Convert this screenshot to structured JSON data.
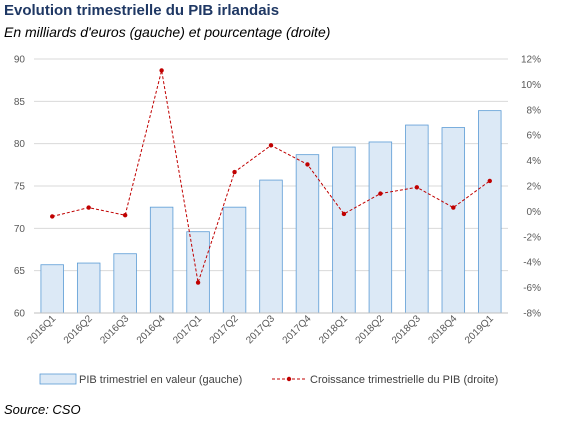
{
  "title": "Evolution trimestrielle du PIB irlandais",
  "subtitle": "En milliards d'euros (gauche) et pourcentage (droite)",
  "source": "Source: CSO",
  "colors": {
    "bar_fill": "#dce9f6",
    "bar_stroke": "#5b9bd5",
    "line": "#c00000",
    "grid": "#d9d9d9",
    "text": "#595959"
  },
  "chart_data": {
    "type": "bar",
    "title": "",
    "categories": [
      "2016Q1",
      "2016Q2",
      "2016Q3",
      "2016Q4",
      "2017Q1",
      "2017Q2",
      "2017Q3",
      "2017Q4",
      "2018Q1",
      "2018Q2",
      "2018Q3",
      "2018Q4",
      "2019Q1"
    ],
    "series": [
      {
        "name": "PIB trimestriel en valeur (gauche)",
        "type": "bar",
        "axis": "left",
        "values": [
          65.7,
          65.9,
          67.0,
          72.5,
          69.6,
          72.5,
          75.7,
          78.7,
          79.6,
          80.2,
          82.2,
          81.9,
          83.9
        ]
      },
      {
        "name": "Croissance trimestrielle du PIB (droite)",
        "type": "line",
        "axis": "right",
        "values": [
          -0.4,
          0.3,
          -0.3,
          11.1,
          -5.6,
          3.1,
          5.2,
          3.7,
          -0.2,
          1.4,
          1.9,
          0.3,
          2.4
        ]
      }
    ],
    "y_left": {
      "min": 60,
      "max": 90,
      "ticks": [
        "60",
        "65",
        "70",
        "75",
        "80",
        "85",
        "90"
      ]
    },
    "y_right": {
      "min": -8,
      "max": 12,
      "ticks": [
        "-8%",
        "-6%",
        "-4%",
        "-2%",
        "0%",
        "2%",
        "4%",
        "6%",
        "8%",
        "10%",
        "12%"
      ]
    },
    "grid": true,
    "legend": "bottom"
  }
}
